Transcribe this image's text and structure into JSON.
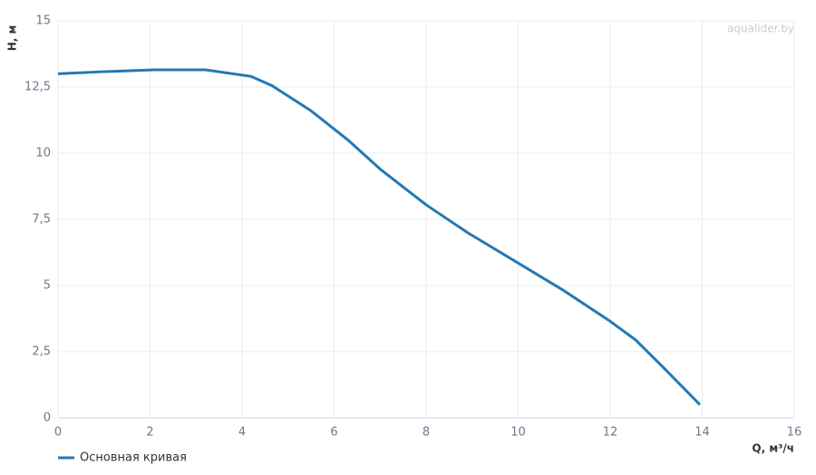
{
  "chart_data": {
    "type": "line",
    "y_label": "H, м",
    "x_label": "Q, м³/ч",
    "watermark": "aqualider.by",
    "x": [
      0,
      1,
      2.1,
      3.2,
      4.2,
      4.65,
      5.5,
      6.3,
      7,
      8,
      8.9,
      10,
      11,
      12,
      12.55,
      13.1,
      13.95
    ],
    "series": [
      {
        "name": "Основная кривая",
        "color": "#2378b5",
        "values": [
          13,
          13.08,
          13.15,
          13.15,
          12.9,
          12.55,
          11.6,
          10.5,
          9.4,
          8.05,
          7,
          5.85,
          4.8,
          3.65,
          2.95,
          2,
          0.5
        ]
      }
    ],
    "xlim": [
      0,
      16
    ],
    "xticks": [
      0,
      2,
      4,
      6,
      8,
      10,
      12,
      14,
      16
    ],
    "ylim": [
      0,
      15
    ],
    "yticks": [
      0,
      {
        "value": 2.5,
        "label": "2,5"
      },
      5,
      {
        "value": 7.5,
        "label": "7,5"
      },
      10,
      {
        "value": 12.5,
        "label": "12,5"
      },
      15
    ],
    "grid": true,
    "legend": "bottom-left"
  }
}
